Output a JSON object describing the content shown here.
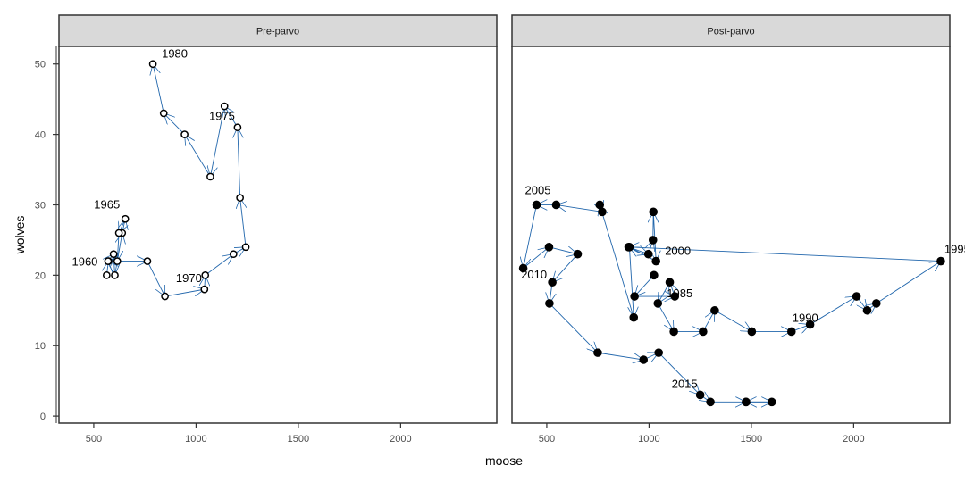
{
  "chart_data": {
    "type": "scatter",
    "connected_path": true,
    "xlabel": "moose",
    "ylabel": "wolves",
    "xlim": [
      330,
      2470
    ],
    "ylim": [
      -1,
      52.5
    ],
    "x_ticks": [
      500,
      1000,
      1500,
      2000
    ],
    "y_ticks": [
      0,
      10,
      20,
      30,
      40,
      50
    ],
    "colors": {
      "path": "#2166ac",
      "strip": "#d9d9d9",
      "panel_border": "#333333"
    },
    "panels": [
      {
        "label": "Pre-parvo",
        "marker": "hollow-circle",
        "years": [
          1959,
          1960,
          1961,
          1962,
          1963,
          1964,
          1965,
          1966,
          1967,
          1968,
          1969,
          1970,
          1971,
          1972,
          1973,
          1974,
          1975,
          1976,
          1977,
          1978,
          1979,
          1980
        ],
        "x": [
          563,
          572,
          570,
          597,
          603,
          639,
          654,
          623,
          615,
          762,
          848,
          1041,
          1045,
          1183,
          1243,
          1215,
          1203,
          1139,
          1070,
          944,
          842,
          789
        ],
        "y": [
          20,
          22,
          22,
          23,
          20,
          26,
          28,
          26,
          22,
          22,
          17,
          18,
          20,
          23,
          24,
          31,
          41,
          44,
          34,
          40,
          43,
          50
        ],
        "year_labels": [
          {
            "text": "1960",
            "year": 1960
          },
          {
            "text": "1965",
            "year": 1965
          },
          {
            "text": "1970",
            "year": 1970
          },
          {
            "text": "1975",
            "year": 1975
          },
          {
            "text": "1980",
            "year": 1980
          }
        ]
      },
      {
        "label": "Post-parvo",
        "marker": "filled-circle",
        "years": [
          1981,
          1982,
          1983,
          1984,
          1985,
          1986,
          1987,
          1988,
          1989,
          1990,
          1991,
          1992,
          1993,
          1994,
          1995,
          1996,
          1997,
          1998,
          1999,
          2000,
          2001,
          2002,
          2003,
          2004,
          2005,
          2006,
          2007,
          2008,
          2009,
          2010,
          2011,
          2012,
          2013,
          2014,
          2015,
          2016,
          2017,
          2018,
          2019
        ],
        "x": [
          1024,
          929,
          1126,
          1101,
          1043,
          1121,
          1264,
          1321,
          1502,
          1696,
          1787,
          2014,
          2066,
          2111,
          2426,
          900,
          997,
          1019,
          1021,
          1034,
          904,
          925,
          759,
          771,
          546,
          450,
          385,
          511,
          651,
          527,
          513,
          749,
          973,
          1047,
          1250,
          1300,
          1474,
          1600,
          1474
        ],
        "y": [
          20,
          17,
          17,
          19,
          16,
          12,
          12,
          15,
          12,
          12,
          13,
          17,
          15,
          16,
          22,
          24,
          23,
          25,
          29,
          22,
          24,
          14,
          30,
          29,
          30,
          30,
          21,
          24,
          23,
          19,
          16,
          9,
          8,
          9,
          3,
          2,
          2,
          2,
          2
        ],
        "year_labels": [
          {
            "text": "1985",
            "year": 1985
          },
          {
            "text": "1990",
            "year": 1990
          },
          {
            "text": "1995",
            "year": 1995
          },
          {
            "text": "2000",
            "year": 2000
          },
          {
            "text": "2005",
            "year": 2005
          },
          {
            "text": "2010",
            "year": 2010
          },
          {
            "text": "2015",
            "year": 2015
          }
        ]
      }
    ]
  }
}
